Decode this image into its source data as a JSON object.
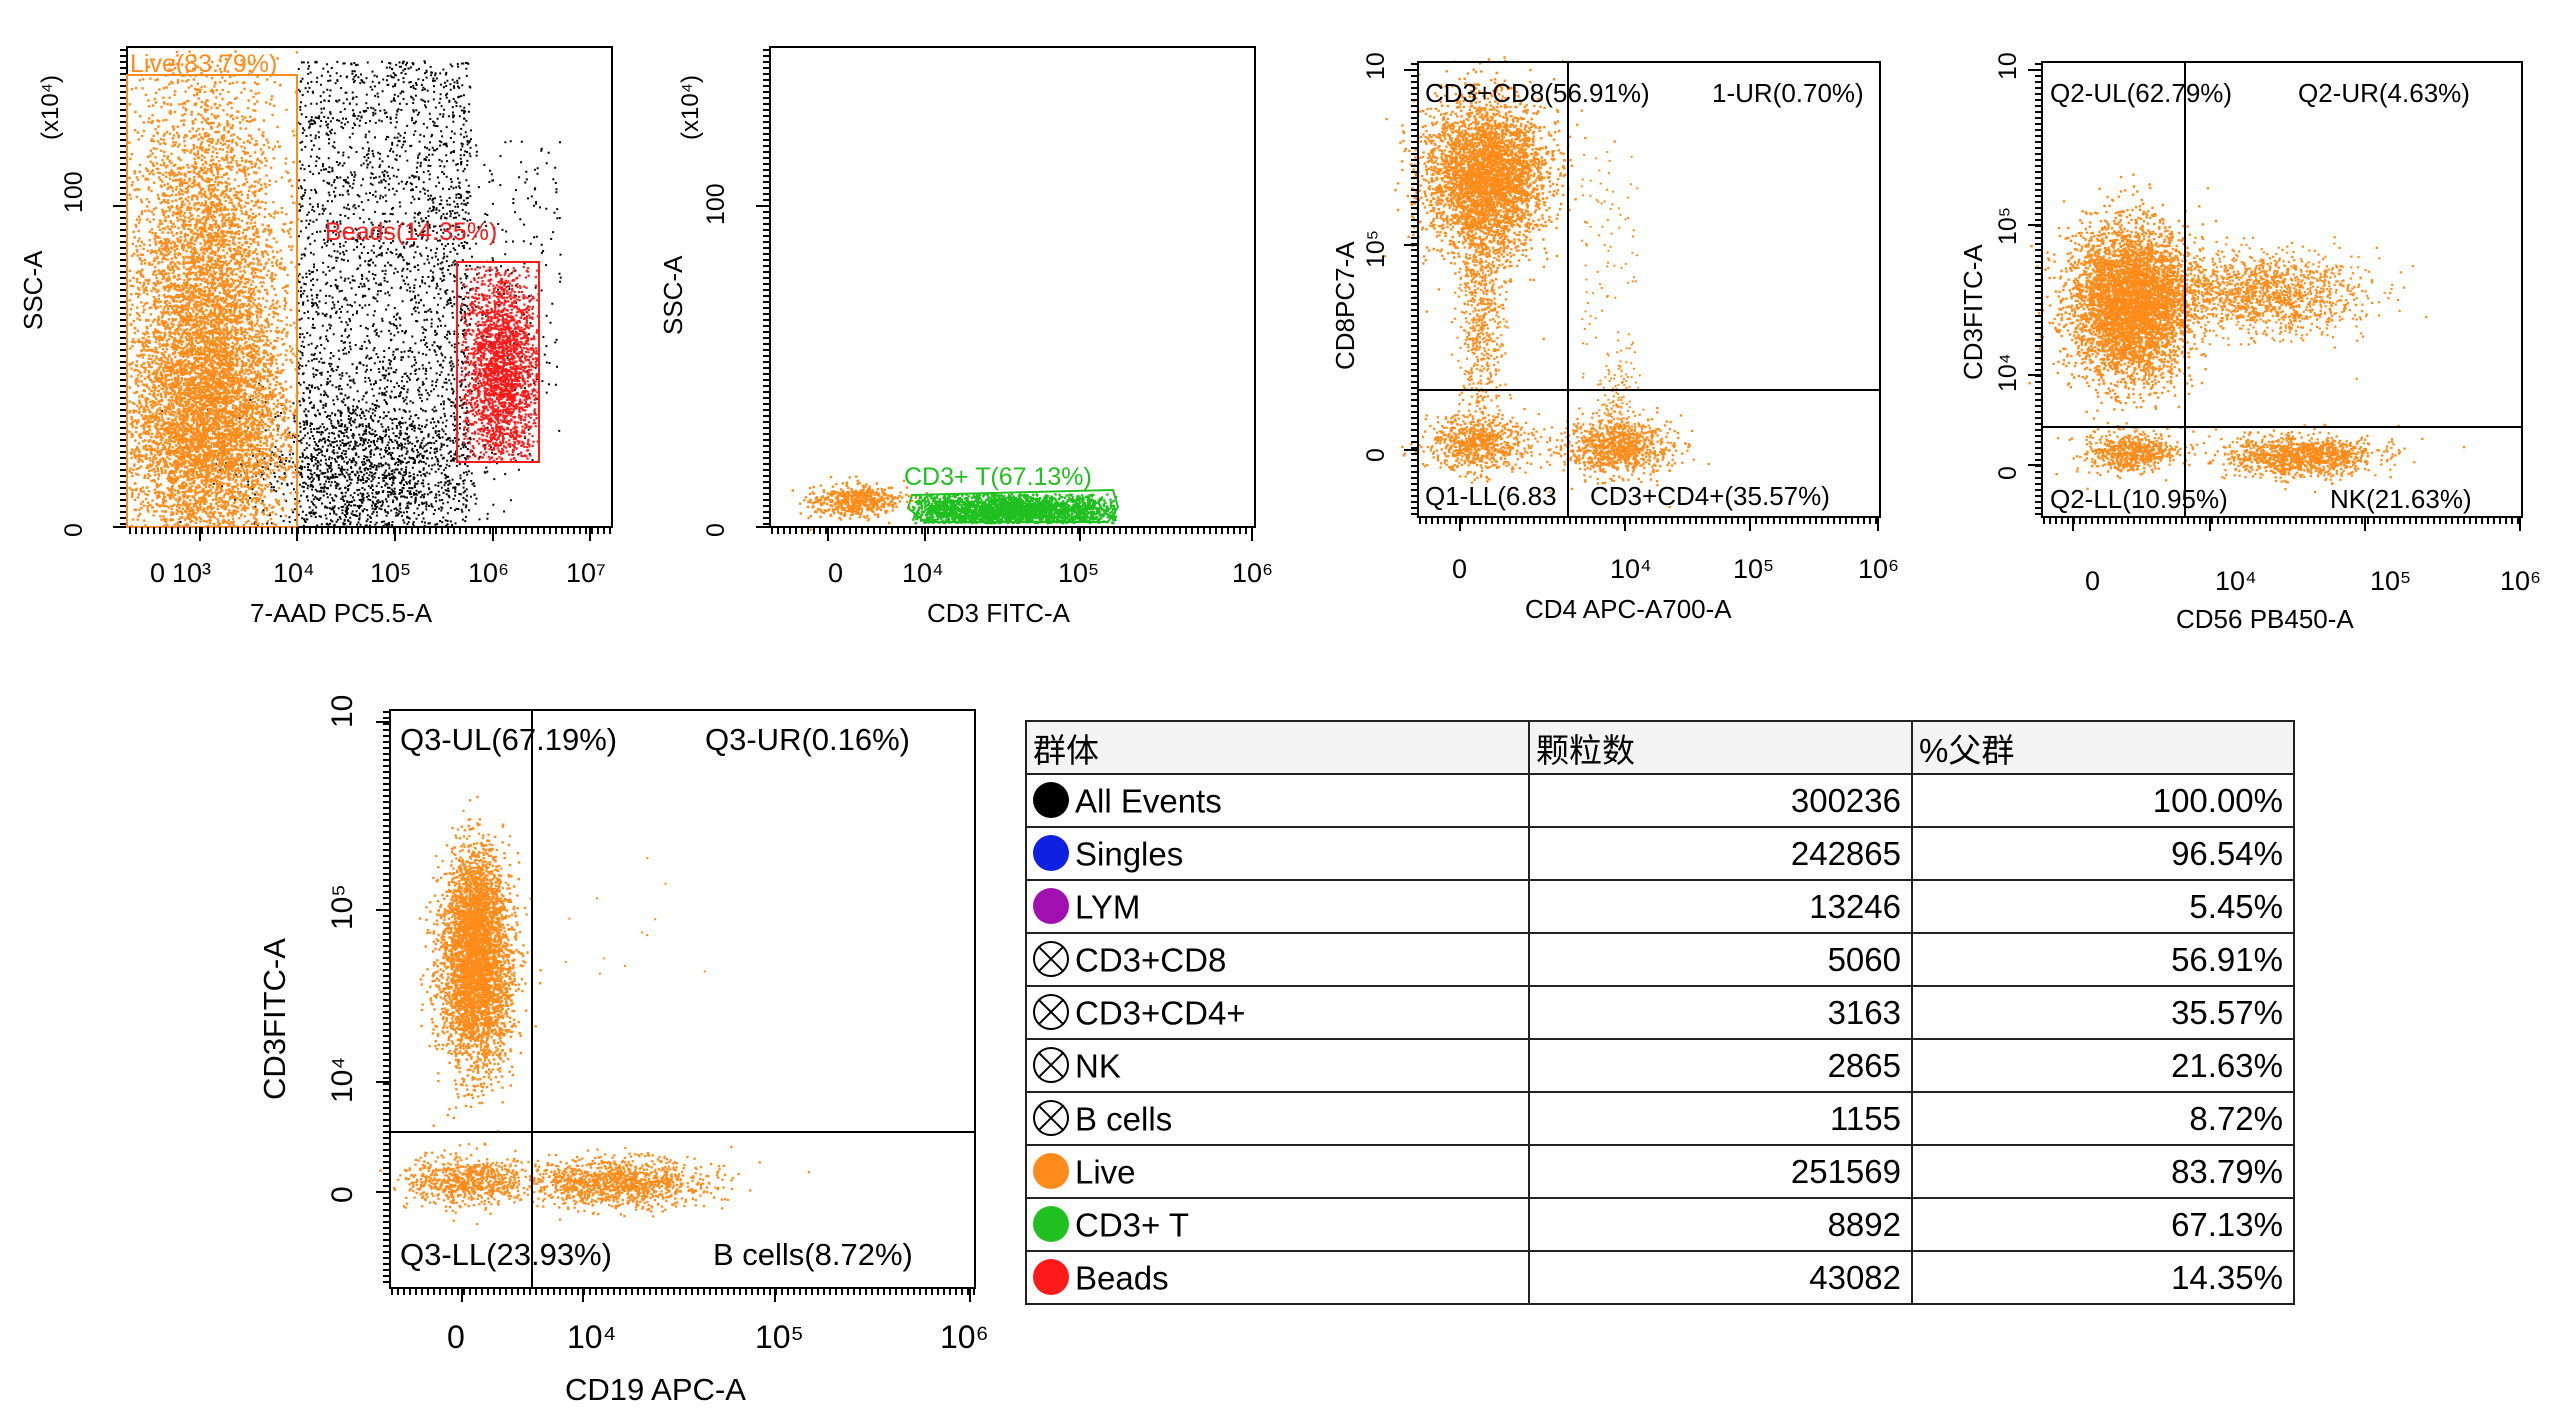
{
  "chart_data": [
    {
      "type": "scatter",
      "xlabel": "7-AAD PC5.5-A",
      "ylabel": "SSC-A",
      "y_multiplier": "(x10⁴)",
      "xticks": [
        "0",
        "10³",
        "10⁴",
        "10⁵",
        "10⁶",
        "10⁷"
      ],
      "yticks": [
        "0",
        "100"
      ],
      "gates": [
        {
          "name": "Live",
          "label": "Live(83.79%)",
          "color": "#ff8c1a",
          "percent": 83.79
        },
        {
          "name": "Beads",
          "label": "Beads(14.35%)",
          "color": "#ff1a1a",
          "percent": 14.35
        }
      ]
    },
    {
      "type": "scatter",
      "xlabel": "CD3 FITC-A",
      "ylabel": "SSC-A",
      "y_multiplier": "(x10⁴)",
      "xticks": [
        "0",
        "10⁴",
        "10⁵",
        "10⁶"
      ],
      "yticks": [
        "0",
        "100"
      ],
      "gates": [
        {
          "name": "CD3+ T",
          "label": "CD3+ T(67.13%)",
          "color": "#20c020",
          "percent": 67.13
        }
      ]
    },
    {
      "type": "scatter",
      "xlabel": "CD4 APC-A700-A",
      "ylabel": "CD8PC7-A",
      "xticks": [
        "0",
        "10⁴",
        "10⁵",
        "10⁶"
      ],
      "yticks": [
        "0",
        "10⁵",
        "10"
      ],
      "quadrants": [
        {
          "pos": "UL",
          "label": "CD3+CD8(56.91%)",
          "percent": 56.91
        },
        {
          "pos": "UR",
          "label": "1-UR(0.70%)",
          "percent": 0.7
        },
        {
          "pos": "LL",
          "label": "Q1-LL(6.83",
          "percent": 6.83
        },
        {
          "pos": "LR",
          "label": "CD3+CD4+(35.57%)",
          "percent": 35.57
        }
      ]
    },
    {
      "type": "scatter",
      "xlabel": "CD56 PB450-A",
      "ylabel": "CD3FITC-A",
      "xticks": [
        "0",
        "10⁴",
        "10⁵",
        "10⁶"
      ],
      "yticks": [
        "0",
        "10⁴",
        "10⁵",
        "10"
      ],
      "quadrants": [
        {
          "pos": "UL",
          "label": "Q2-UL(62.79%)",
          "percent": 62.79
        },
        {
          "pos": "UR",
          "label": "Q2-UR(4.63%)",
          "percent": 4.63
        },
        {
          "pos": "LL",
          "label": "Q2-LL(10.95%)",
          "percent": 10.95
        },
        {
          "pos": "LR",
          "label": "NK(21.63%)",
          "percent": 21.63
        }
      ]
    },
    {
      "type": "scatter",
      "xlabel": "CD19 APC-A",
      "ylabel": "CD3FITC-A",
      "xticks": [
        "0",
        "10⁴",
        "10⁵",
        "10⁶"
      ],
      "yticks": [
        "0",
        "10⁴",
        "10⁵",
        "10"
      ],
      "quadrants": [
        {
          "pos": "UL",
          "label": "Q3-UL(67.19%)",
          "percent": 67.19
        },
        {
          "pos": "UR",
          "label": "Q3-UR(0.16%)",
          "percent": 0.16
        },
        {
          "pos": "LL",
          "label": "Q3-LL(23.93%)",
          "percent": 23.93
        },
        {
          "pos": "LR",
          "label": "B cells(8.72%)",
          "percent": 8.72
        }
      ]
    },
    {
      "type": "table",
      "headers": [
        "群体",
        "颗粒数",
        "%父群"
      ],
      "rows": [
        {
          "name": "All Events",
          "count": "300236",
          "percent": "100.00%",
          "marker": "filled",
          "color": "#000000"
        },
        {
          "name": "Singles",
          "count": "242865",
          "percent": "96.54%",
          "marker": "filled",
          "color": "#1020e0"
        },
        {
          "name": "LYM",
          "count": "13246",
          "percent": "5.45%",
          "marker": "filled",
          "color": "#a010b0"
        },
        {
          "name": "CD3+CD8",
          "count": "5060",
          "percent": "56.91%",
          "marker": "crossed",
          "color": "#ffffff"
        },
        {
          "name": "CD3+CD4+",
          "count": "3163",
          "percent": "35.57%",
          "marker": "crossed",
          "color": "#ffffff"
        },
        {
          "name": "NK",
          "count": "2865",
          "percent": "21.63%",
          "marker": "crossed",
          "color": "#ffffff"
        },
        {
          "name": "B cells",
          "count": "1155",
          "percent": "8.72%",
          "marker": "crossed",
          "color": "#ffffff"
        },
        {
          "name": "Live",
          "count": "251569",
          "percent": "83.79%",
          "marker": "filled",
          "color": "#ff8c1a"
        },
        {
          "name": "CD3+ T",
          "count": "8892",
          "percent": "67.13%",
          "marker": "filled",
          "color": "#20c020"
        },
        {
          "name": "Beads",
          "count": "43082",
          "percent": "14.35%",
          "marker": "filled",
          "color": "#ff1a1a"
        }
      ]
    }
  ],
  "colors": {
    "events": "#ff8c1a",
    "background_events": "#000000",
    "gate_line": "#000000"
  }
}
